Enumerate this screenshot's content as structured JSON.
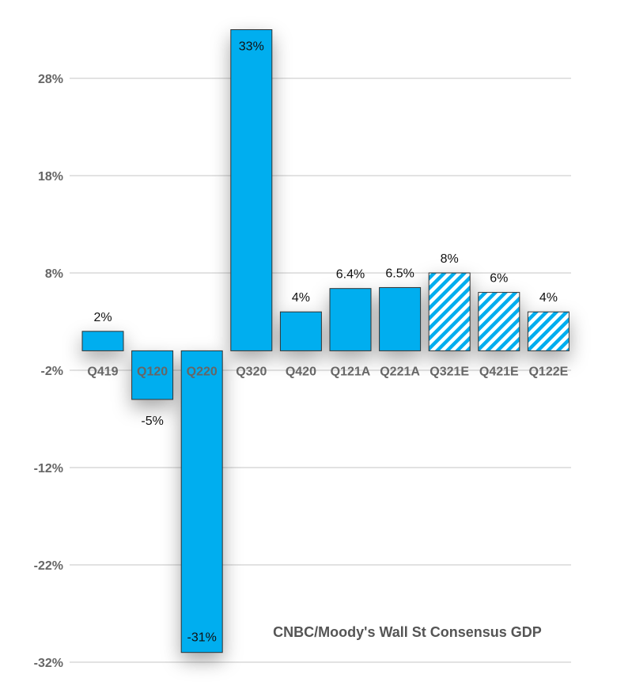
{
  "chart_data": {
    "type": "bar",
    "title": "",
    "xlabel": "",
    "ylabel": "",
    "annotation": "CNBC/Moody's Wall St Consensus GDP",
    "ylim": [
      -32,
      33
    ],
    "yticks": [
      28,
      18,
      8,
      -2,
      -12,
      -22,
      -32
    ],
    "ytick_labels": [
      "28%",
      "18%",
      "8%",
      "-2%",
      "-12%",
      "-22%",
      "-32%"
    ],
    "grid": true,
    "categories": [
      "Q419",
      "Q120",
      "Q220",
      "Q320",
      "Q420",
      "Q121A",
      "Q221A",
      "Q321E",
      "Q421E",
      "Q122E"
    ],
    "values": [
      2,
      -5,
      -31,
      33,
      4,
      6.4,
      6.5,
      8,
      6,
      4
    ],
    "data_labels": [
      "2%",
      "-5%",
      "-31%",
      "33%",
      "4%",
      "6.4%",
      "6.5%",
      "8%",
      "6%",
      "4%"
    ],
    "estimate": [
      false,
      false,
      false,
      false,
      false,
      false,
      false,
      true,
      true,
      true
    ],
    "colors": {
      "bar": "#00AEEF",
      "bar_stroke": "#333333",
      "hatch_bg": "#ffffff",
      "grid": "#d9d9d9"
    }
  }
}
